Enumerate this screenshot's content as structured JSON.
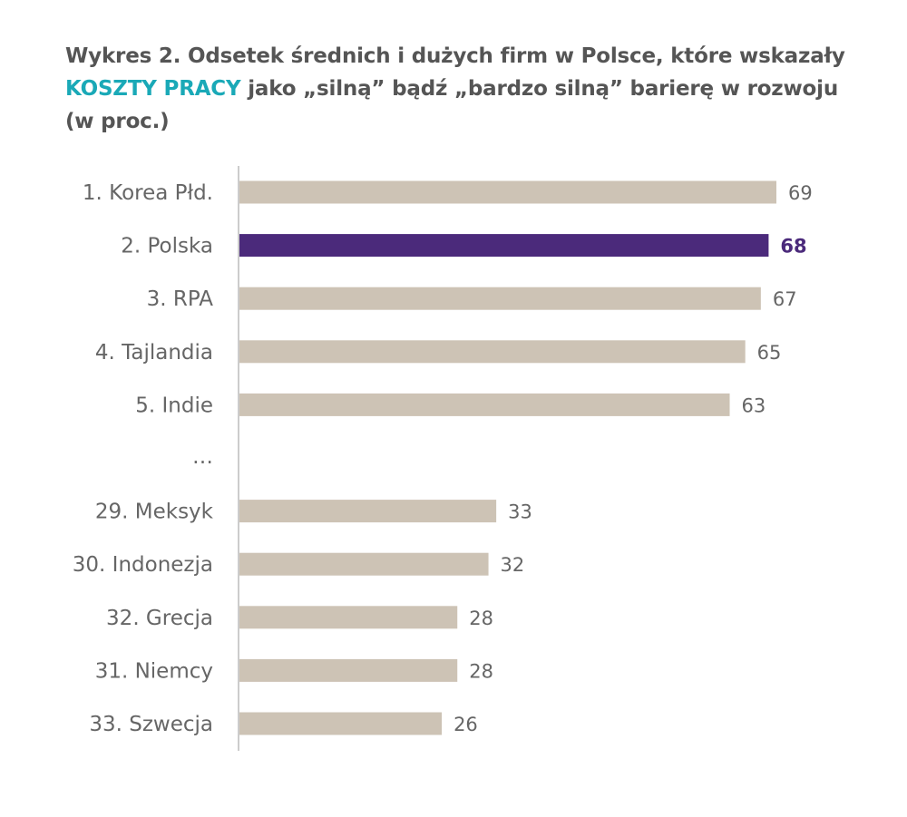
{
  "title": {
    "part1": "Wykres 2. Odsetek średnich i dużych firm w Polsce, które wskazały",
    "highlight": "KOSZTY PRACY",
    "part2": "jako „silną” bądź „bardzo silną” barierę w rozwoju (w proc.)"
  },
  "colors": {
    "bar": "#cdc3b5",
    "highlight_bar": "#4b2a7b",
    "title_highlight": "#1aa9b7",
    "axis": "#bbbbbb"
  },
  "chart_data": {
    "type": "bar",
    "orientation": "horizontal",
    "categories": [
      "1. Korea Płd.",
      "2. Polska",
      "3. RPA",
      "4. Tajlandia",
      "5. Indie",
      "…",
      "29. Meksyk",
      "30. Indonezja",
      "32. Grecja",
      "31. Niemcy",
      "33. Szwecja"
    ],
    "values": [
      69,
      68,
      67,
      65,
      63,
      null,
      33,
      32,
      28,
      28,
      26
    ],
    "value_labels": [
      "69",
      "68",
      "67",
      "65",
      "63",
      "",
      "33",
      "32",
      "28",
      "28",
      "26"
    ],
    "highlight_index": 1,
    "xlim": [
      0,
      69
    ],
    "grid": false,
    "xlabel": "",
    "ylabel": ""
  }
}
